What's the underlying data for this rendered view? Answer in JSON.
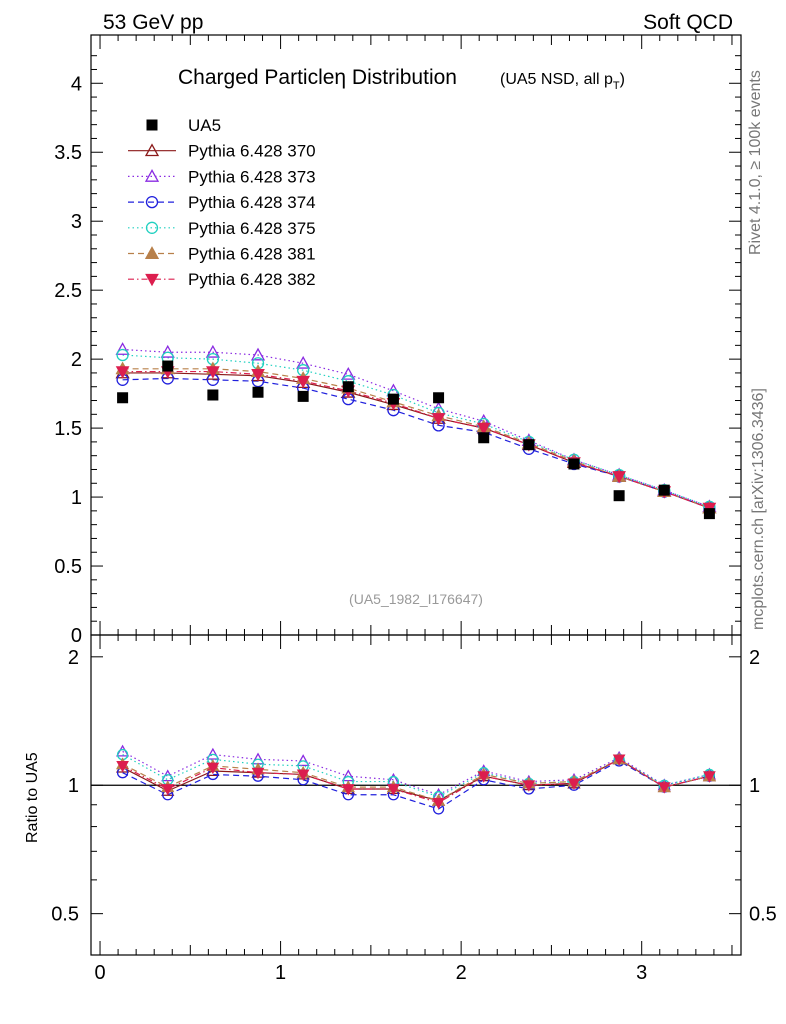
{
  "header": {
    "left": "53 GeV pp",
    "right": "Soft QCD"
  },
  "side_labels": {
    "rivet": "Rivet 4.1.0, ≥ 100k events",
    "mcplots": "mcplots.cern.ch [arXiv:1306.3436]"
  },
  "chart_data": [
    {
      "type": "scatter",
      "panel": "main",
      "title": "Charged Particleη Distribution",
      "subtitle": "(UA5 NSD, all p",
      "subtitle_sub": "T",
      "subtitle_end": ")",
      "analysis_id": "(UA5_1982_I176647)",
      "xlabel": "",
      "ylabel": "",
      "xlim": [
        -0.05,
        3.55
      ],
      "ylim": [
        0,
        4.35
      ],
      "yticks": [
        0,
        0.5,
        1,
        1.5,
        2,
        2.5,
        3,
        3.5,
        4
      ],
      "ytick_labels": [
        "0",
        "0.5",
        "1",
        "1.5",
        "2",
        "2.5",
        "3",
        "3.5",
        "4"
      ],
      "legend_position": "top-left",
      "x": [
        0.125,
        0.375,
        0.625,
        0.875,
        1.125,
        1.375,
        1.625,
        1.875,
        2.125,
        2.375,
        2.625,
        2.875,
        3.125,
        3.375
      ],
      "series": [
        {
          "name": "UA5",
          "color": "#000000",
          "marker": "square",
          "line": "none",
          "values": [
            1.72,
            1.95,
            1.74,
            1.76,
            1.73,
            1.8,
            1.71,
            1.72,
            1.43,
            1.38,
            1.24,
            1.01,
            1.05,
            0.88
          ]
        },
        {
          "name": "Pythia 6.428 370",
          "color": "#8b1a1a",
          "marker": "triangle-up-open",
          "line": "solid",
          "values": [
            1.9,
            1.9,
            1.89,
            1.88,
            1.83,
            1.76,
            1.67,
            1.57,
            1.5,
            1.38,
            1.25,
            1.15,
            1.04,
            0.92
          ]
        },
        {
          "name": "Pythia 6.428 373",
          "color": "#8a2be2",
          "marker": "triangle-up-open",
          "line": "dotted",
          "values": [
            2.07,
            2.05,
            2.05,
            2.03,
            1.97,
            1.89,
            1.77,
            1.64,
            1.55,
            1.41,
            1.27,
            1.16,
            1.05,
            0.93
          ]
        },
        {
          "name": "Pythia 6.428 374",
          "color": "#2020dd",
          "marker": "circle-open",
          "line": "dashed",
          "values": [
            1.85,
            1.86,
            1.85,
            1.84,
            1.79,
            1.71,
            1.63,
            1.52,
            1.47,
            1.35,
            1.24,
            1.15,
            1.04,
            0.92
          ]
        },
        {
          "name": "Pythia 6.428 375",
          "color": "#20d0c0",
          "marker": "circle-open",
          "line": "dotted",
          "values": [
            2.03,
            2.01,
            2.0,
            1.97,
            1.92,
            1.84,
            1.74,
            1.61,
            1.53,
            1.4,
            1.27,
            1.16,
            1.05,
            0.93
          ]
        },
        {
          "name": "Pythia 6.428 381",
          "color": "#b8804a",
          "marker": "triangle-up-filled",
          "line": "dashed",
          "values": [
            1.93,
            1.93,
            1.93,
            1.91,
            1.86,
            1.79,
            1.69,
            1.59,
            1.51,
            1.39,
            1.26,
            1.15,
            1.04,
            0.92
          ]
        },
        {
          "name": "Pythia 6.428 382",
          "color": "#dc1e4e",
          "marker": "triangle-down-filled",
          "line": "dashdot",
          "values": [
            1.91,
            1.91,
            1.91,
            1.89,
            1.84,
            1.77,
            1.68,
            1.57,
            1.5,
            1.38,
            1.25,
            1.15,
            1.04,
            0.92
          ]
        }
      ]
    },
    {
      "type": "scatter",
      "panel": "ratio",
      "ylabel": "Ratio to UA5",
      "xlabel": "",
      "xlim": [
        -0.05,
        3.55
      ],
      "ylim": [
        0.4,
        2.25
      ],
      "yticks": [
        0.5,
        1,
        2
      ],
      "ytick_labels": [
        "0.5",
        "1",
        "2"
      ],
      "xticks": [
        0,
        1,
        2,
        3
      ],
      "xtick_labels": [
        "0",
        "1",
        "2",
        "3"
      ],
      "reference_line": 1,
      "x": [
        0.125,
        0.375,
        0.625,
        0.875,
        1.125,
        1.375,
        1.625,
        1.875,
        2.125,
        2.375,
        2.625,
        2.875,
        3.125,
        3.375
      ],
      "series": [
        {
          "name": "Pythia 6.428 370",
          "values": [
            1.1,
            0.97,
            1.08,
            1.07,
            1.06,
            0.98,
            0.98,
            0.92,
            1.05,
            1.0,
            1.01,
            1.15,
            0.99,
            1.05
          ]
        },
        {
          "name": "Pythia 6.428 373",
          "values": [
            1.2,
            1.05,
            1.18,
            1.15,
            1.14,
            1.05,
            1.03,
            0.95,
            1.08,
            1.02,
            1.03,
            1.16,
            1.0,
            1.06
          ]
        },
        {
          "name": "Pythia 6.428 374",
          "values": [
            1.07,
            0.95,
            1.06,
            1.05,
            1.03,
            0.95,
            0.95,
            0.88,
            1.03,
            0.98,
            1.0,
            1.14,
            0.99,
            1.05
          ]
        },
        {
          "name": "Pythia 6.428 375",
          "values": [
            1.18,
            1.03,
            1.15,
            1.12,
            1.11,
            1.02,
            1.02,
            0.94,
            1.07,
            1.01,
            1.02,
            1.15,
            1.0,
            1.06
          ]
        },
        {
          "name": "Pythia 6.428 381",
          "values": [
            1.12,
            0.99,
            1.11,
            1.09,
            1.07,
            0.99,
            0.99,
            0.92,
            1.06,
            1.01,
            1.02,
            1.15,
            0.99,
            1.05
          ]
        },
        {
          "name": "Pythia 6.428 382",
          "values": [
            1.11,
            0.98,
            1.1,
            1.07,
            1.06,
            0.98,
            0.98,
            0.91,
            1.05,
            1.0,
            1.01,
            1.15,
            0.99,
            1.05
          ]
        }
      ]
    }
  ]
}
